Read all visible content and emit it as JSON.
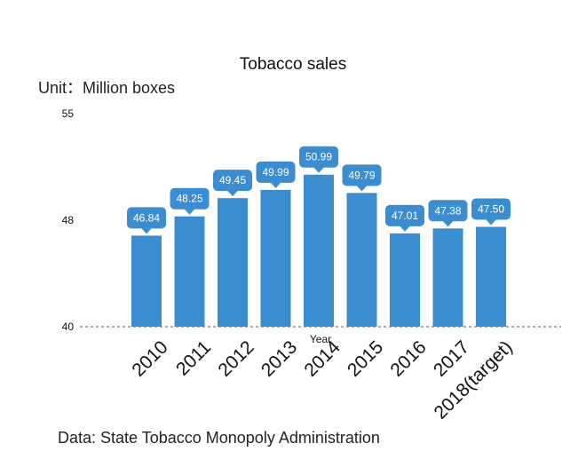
{
  "chart_data": {
    "type": "bar",
    "title": "Tobacco sales",
    "unit": "Unit：Million boxes",
    "xlabel": "Year",
    "ylabel": "",
    "categories": [
      "2010",
      "2011",
      "2012",
      "2013",
      "2014",
      "2015",
      "2016",
      "2017",
      "2018(target)"
    ],
    "values": [
      46.84,
      48.25,
      49.45,
      49.99,
      50.99,
      49.79,
      47.01,
      47.38,
      47.5
    ],
    "value_labels": [
      "46.84",
      "48.25",
      "49.45",
      "49.99",
      "50.99",
      "49.79",
      "47.01",
      "47.38",
      "47.50"
    ],
    "yticks": [
      40,
      48,
      55
    ],
    "ylim": [
      40,
      55
    ],
    "grid": false,
    "bar_color": "#3c8dd0",
    "label_bg_color": "#3c8dd0",
    "source": "Data: State Tobacco Monopoly Administration"
  }
}
